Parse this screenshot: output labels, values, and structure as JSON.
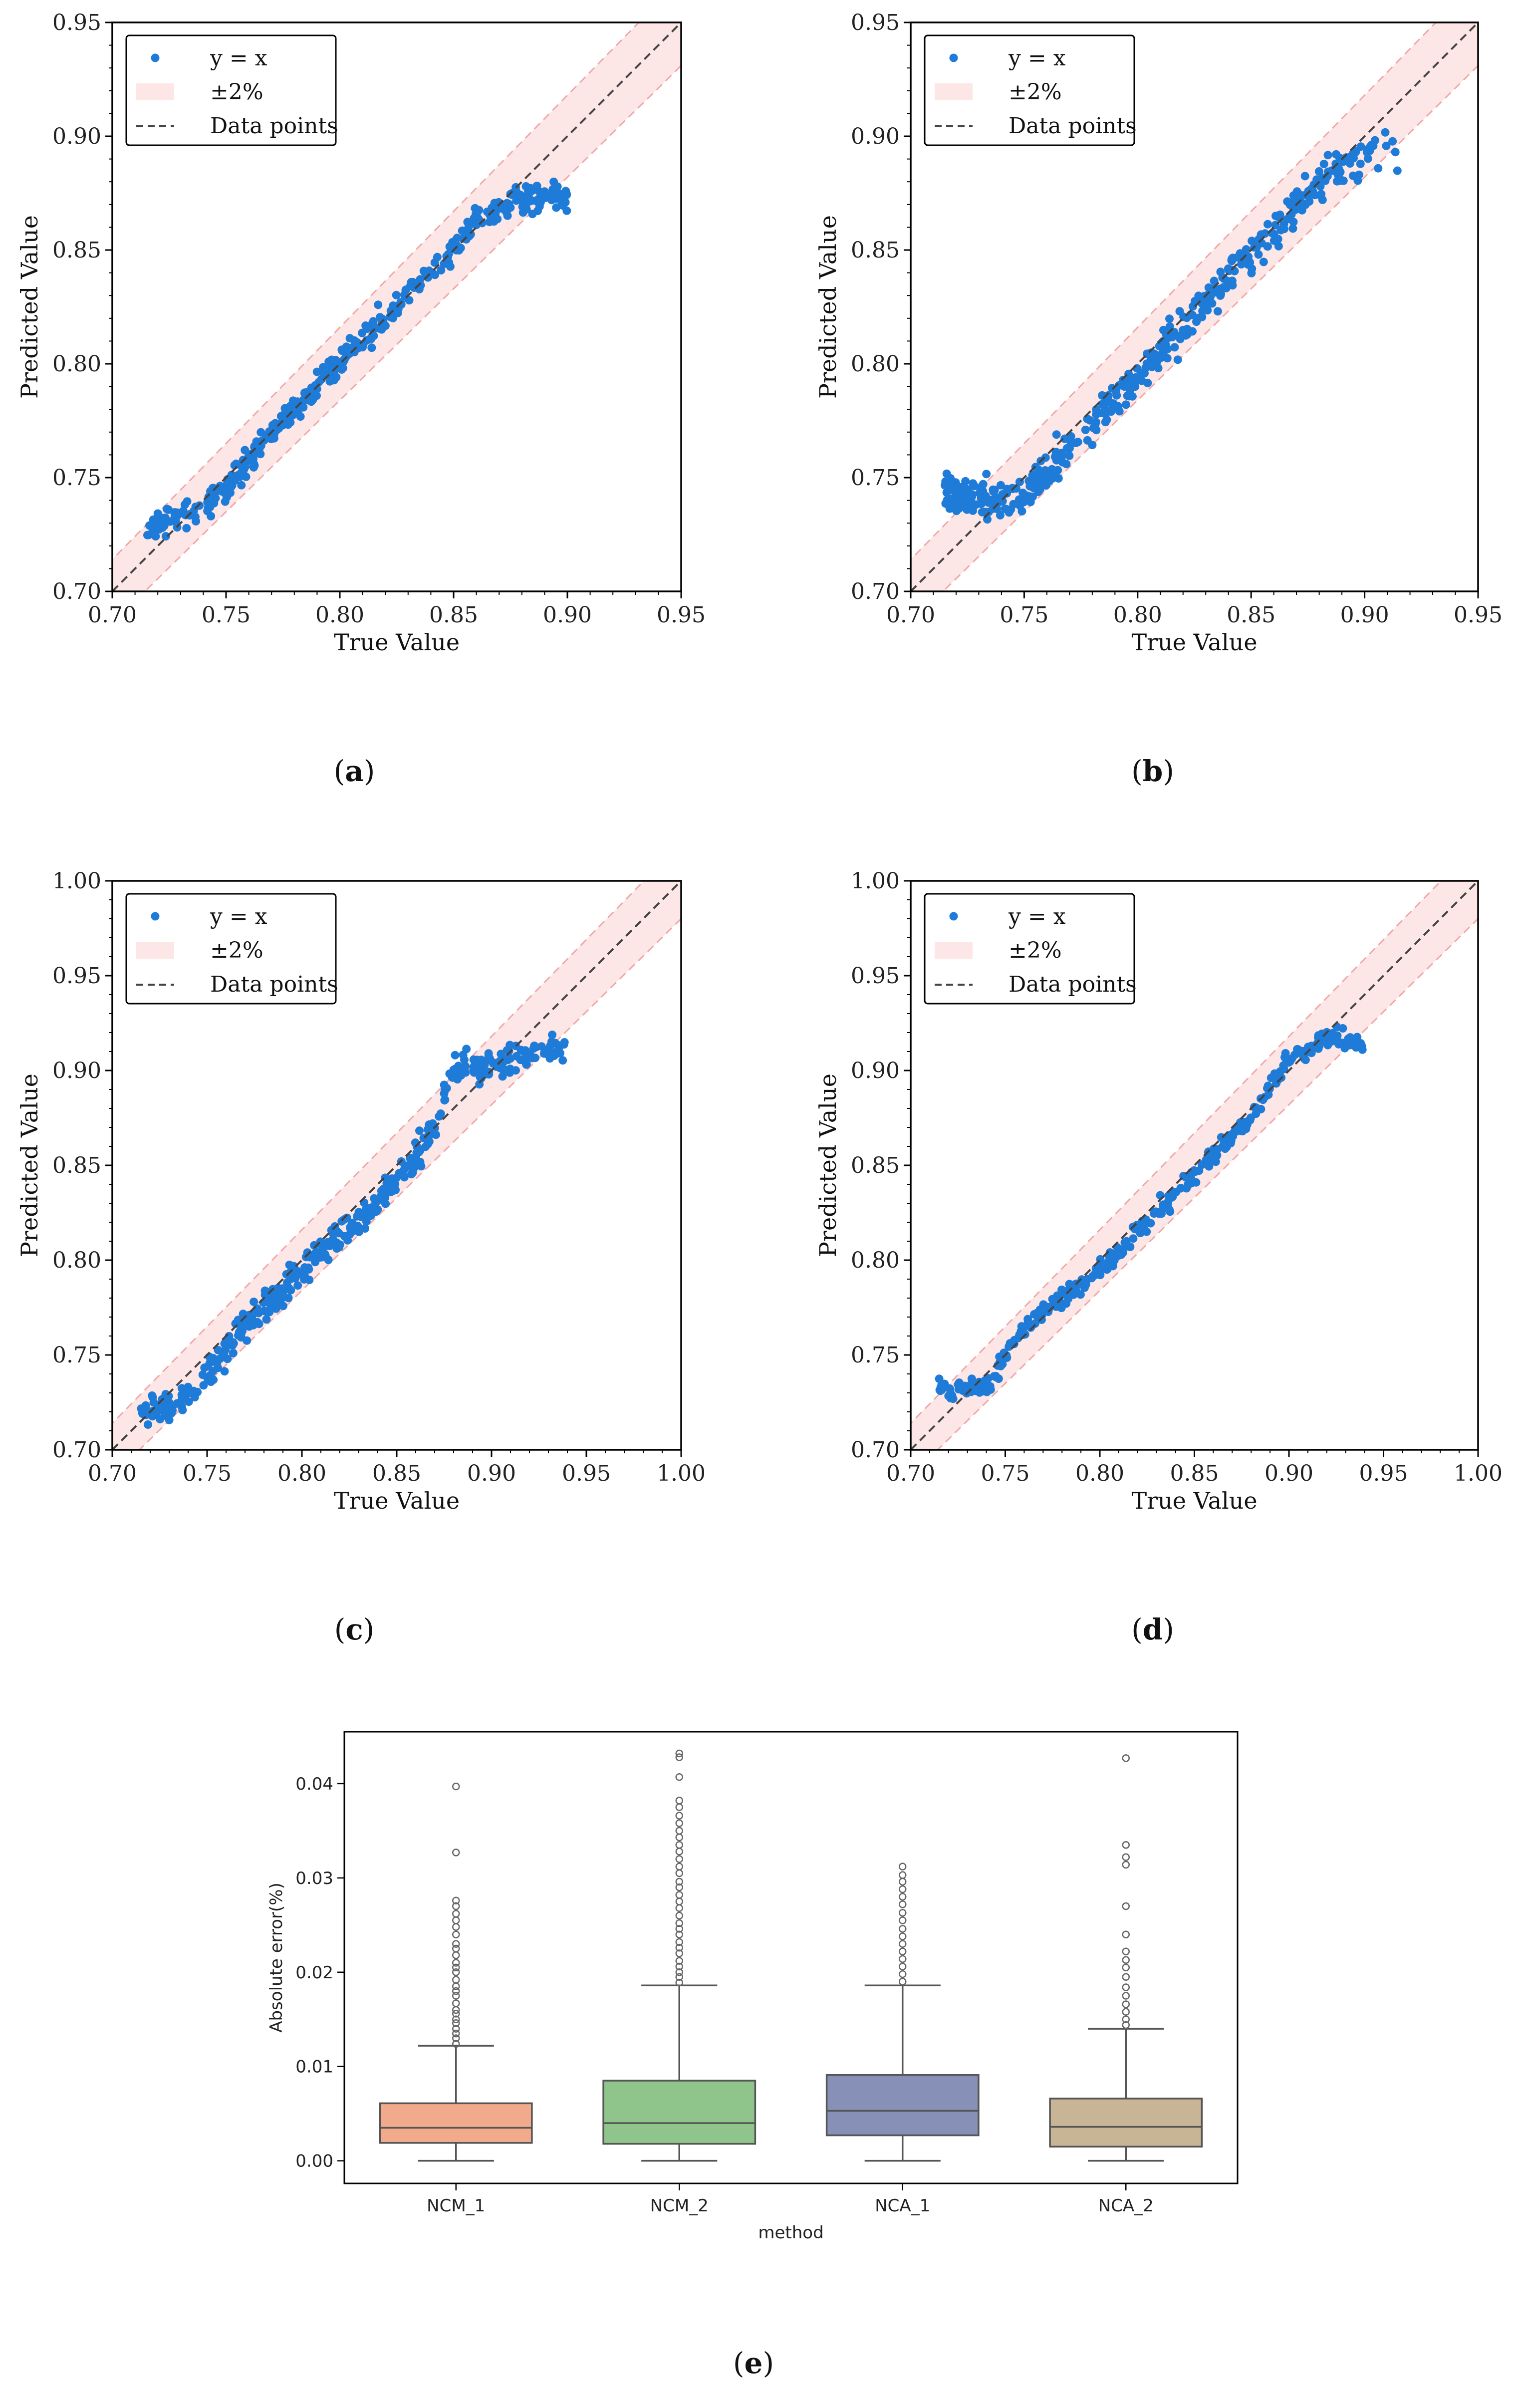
{
  "figure": {
    "captions": [
      "a",
      "b",
      "c",
      "d",
      "e"
    ]
  },
  "colors": {
    "points": "#1f7bd8",
    "band_fill": "#fde6e6",
    "band_edge": "#f2a8a8",
    "diag_line": "#444444",
    "box_fills": [
      "#f2aa8c",
      "#8fc48a",
      "#8790b6",
      "#c8b595"
    ]
  },
  "chart_data": [
    {
      "type": "scatter",
      "id": "a",
      "xlabel": "True Value",
      "ylabel": "Predicted Value",
      "xlim": [
        0.7,
        0.95
      ],
      "ylim": [
        0.7,
        0.95
      ],
      "xticks": [
        "0.70",
        "0.75",
        "0.80",
        "0.85",
        "0.90",
        "0.95"
      ],
      "yticks": [
        "0.70",
        "0.75",
        "0.80",
        "0.85",
        "0.90",
        "0.95"
      ],
      "legend": [
        "y = x",
        "±2%",
        "Data points"
      ],
      "legend_position": "top-left",
      "band_percent": 2,
      "data_x_range": [
        0.715,
        0.9
      ],
      "trend": [
        [
          0.715,
          0.728
        ],
        [
          0.73,
          0.733
        ],
        [
          0.75,
          0.745
        ],
        [
          0.77,
          0.77
        ],
        [
          0.8,
          0.8
        ],
        [
          0.83,
          0.83
        ],
        [
          0.86,
          0.862
        ],
        [
          0.875,
          0.872
        ],
        [
          0.9,
          0.873
        ]
      ],
      "scatter": 0.006,
      "points": 420,
      "seed": 11
    },
    {
      "type": "scatter",
      "id": "b",
      "xlabel": "True Value",
      "ylabel": "Predicted Value",
      "xlim": [
        0.7,
        0.95
      ],
      "ylim": [
        0.7,
        0.95
      ],
      "xticks": [
        "0.70",
        "0.75",
        "0.80",
        "0.85",
        "0.90",
        "0.95"
      ],
      "yticks": [
        "0.70",
        "0.75",
        "0.80",
        "0.85",
        "0.90",
        "0.95"
      ],
      "legend": [
        "y = x",
        "±2%",
        "Data points"
      ],
      "legend_position": "top-left",
      "band_percent": 2,
      "data_x_range": [
        0.715,
        0.915
      ],
      "trend": [
        [
          0.715,
          0.742
        ],
        [
          0.73,
          0.74
        ],
        [
          0.75,
          0.742
        ],
        [
          0.77,
          0.763
        ],
        [
          0.8,
          0.795
        ],
        [
          0.83,
          0.827
        ],
        [
          0.86,
          0.858
        ],
        [
          0.885,
          0.886
        ],
        [
          0.915,
          0.893
        ]
      ],
      "scatter": 0.008,
      "points": 460,
      "seed": 23
    },
    {
      "type": "scatter",
      "id": "c",
      "xlabel": "True Value",
      "ylabel": "Predicted Value",
      "xlim": [
        0.7,
        1.0
      ],
      "ylim": [
        0.7,
        1.0
      ],
      "xticks": [
        "0.70",
        "0.75",
        "0.80",
        "0.85",
        "0.90",
        "0.95",
        "1.00"
      ],
      "yticks": [
        "0.70",
        "0.75",
        "0.80",
        "0.85",
        "0.90",
        "0.95",
        "1.00"
      ],
      "legend": [
        "y = x",
        "±2%",
        "Data points"
      ],
      "legend_position": "top-left",
      "band_percent": 2,
      "data_x_range": [
        0.715,
        0.94
      ],
      "trend": [
        [
          0.715,
          0.722
        ],
        [
          0.74,
          0.725
        ],
        [
          0.76,
          0.755
        ],
        [
          0.8,
          0.795
        ],
        [
          0.85,
          0.84
        ],
        [
          0.87,
          0.87
        ],
        [
          0.88,
          0.9
        ],
        [
          0.91,
          0.906
        ],
        [
          0.94,
          0.912
        ]
      ],
      "scatter": 0.008,
      "points": 420,
      "seed": 37
    },
    {
      "type": "scatter",
      "id": "d",
      "xlabel": "True Value",
      "ylabel": "Predicted Value",
      "xlim": [
        0.7,
        1.0
      ],
      "ylim": [
        0.7,
        1.0
      ],
      "xticks": [
        "0.70",
        "0.75",
        "0.80",
        "0.85",
        "0.90",
        "0.95",
        "1.00"
      ],
      "yticks": [
        "0.70",
        "0.75",
        "0.80",
        "0.85",
        "0.90",
        "0.95",
        "1.00"
      ],
      "legend": [
        "y = x",
        "±2%",
        "Data points"
      ],
      "legend_position": "top-left",
      "band_percent": 2,
      "data_x_range": [
        0.715,
        0.94
      ],
      "trend": [
        [
          0.715,
          0.731
        ],
        [
          0.74,
          0.733
        ],
        [
          0.76,
          0.765
        ],
        [
          0.8,
          0.795
        ],
        [
          0.85,
          0.845
        ],
        [
          0.88,
          0.875
        ],
        [
          0.9,
          0.905
        ],
        [
          0.92,
          0.918
        ],
        [
          0.94,
          0.915
        ]
      ],
      "scatter": 0.005,
      "points": 380,
      "seed": 51
    },
    {
      "type": "box",
      "id": "e",
      "xlabel": "method",
      "ylabel": "Absolute error(%)",
      "ylim": [
        -0.0024,
        0.0455
      ],
      "yticks": [
        "0.00",
        "0.01",
        "0.02",
        "0.03",
        "0.04"
      ],
      "categories": [
        "NCM_1",
        "NCM_2",
        "NCA_1",
        "NCA_2"
      ],
      "boxes": [
        {
          "q1": 0.0019,
          "median": 0.0035,
          "q3": 0.0061,
          "whisker_low": 0.0,
          "whisker_high": 0.0122,
          "outliers": [
            0.0124,
            0.013,
            0.0135,
            0.014,
            0.0146,
            0.015,
            0.0156,
            0.016,
            0.0167,
            0.0175,
            0.018,
            0.0185,
            0.0192,
            0.02,
            0.0205,
            0.021,
            0.0218,
            0.0225,
            0.023,
            0.024,
            0.0248,
            0.0255,
            0.0262,
            0.027,
            0.0276,
            0.0327,
            0.0397
          ]
        },
        {
          "q1": 0.0018,
          "median": 0.004,
          "q3": 0.0085,
          "whisker_low": 0.0,
          "whisker_high": 0.0186,
          "outliers": [
            0.0189,
            0.0195,
            0.02,
            0.0206,
            0.0212,
            0.022,
            0.0226,
            0.0232,
            0.024,
            0.0246,
            0.0252,
            0.026,
            0.0268,
            0.0275,
            0.0282,
            0.029,
            0.0296,
            0.0305,
            0.0312,
            0.032,
            0.0328,
            0.0335,
            0.0343,
            0.035,
            0.0358,
            0.0366,
            0.0375,
            0.0382,
            0.0407,
            0.0428,
            0.0432
          ]
        },
        {
          "q1": 0.0027,
          "median": 0.0053,
          "q3": 0.0091,
          "whisker_low": 0.0,
          "whisker_high": 0.0186,
          "outliers": [
            0.019,
            0.0198,
            0.0206,
            0.0214,
            0.0222,
            0.023,
            0.0238,
            0.0246,
            0.0255,
            0.0263,
            0.0272,
            0.028,
            0.0288,
            0.0296,
            0.0303,
            0.0312
          ]
        },
        {
          "q1": 0.0015,
          "median": 0.0036,
          "q3": 0.0066,
          "whisker_low": 0.0,
          "whisker_high": 0.014,
          "outliers": [
            0.0144,
            0.015,
            0.0158,
            0.0166,
            0.0175,
            0.0184,
            0.0195,
            0.0205,
            0.0213,
            0.0222,
            0.024,
            0.027,
            0.0314,
            0.0322,
            0.0335,
            0.0427
          ]
        }
      ]
    }
  ]
}
